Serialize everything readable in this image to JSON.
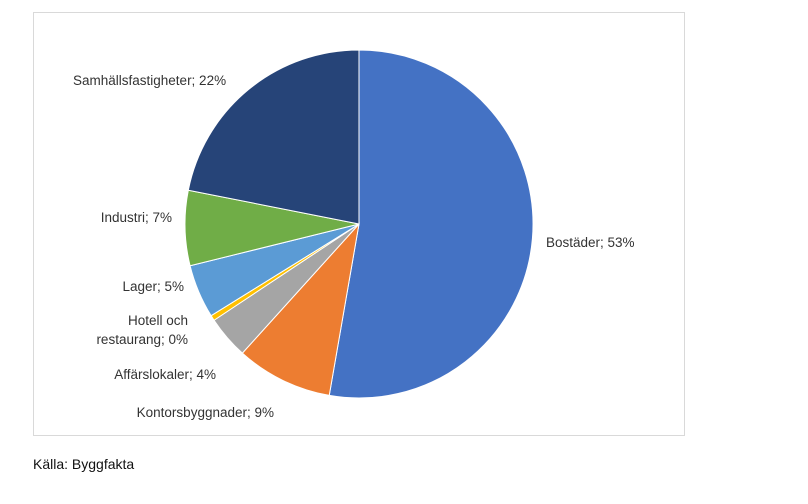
{
  "chart_data": {
    "type": "pie",
    "slices": [
      {
        "label": "Bostäder",
        "value": 53,
        "text": "Bostäder; 53%",
        "color": "#4472C4"
      },
      {
        "label": "Kontorsbyggnader",
        "value": 9,
        "text": "Kontorsbyggnader; 9%",
        "color": "#ED7D31"
      },
      {
        "label": "Affärslokaler",
        "value": 4,
        "text": "Affärslokaler; 4%",
        "color": "#A5A5A5"
      },
      {
        "label": "Hotell och restaurang",
        "value": 0.5,
        "text_line1": "Hotell och",
        "text_line2": "restaurang; 0%",
        "color": "#FFC000"
      },
      {
        "label": "Lager",
        "value": 5,
        "text": "Lager; 5%",
        "color": "#5B9BD5"
      },
      {
        "label": "Industri",
        "value": 7,
        "text": "Industri; 7%",
        "color": "#70AD47"
      },
      {
        "label": "Samhällsfastigheter",
        "value": 22,
        "text": "Samhällsfastigheter; 22%",
        "color": "#264478"
      }
    ]
  },
  "source": "Källa: Byggfakta"
}
